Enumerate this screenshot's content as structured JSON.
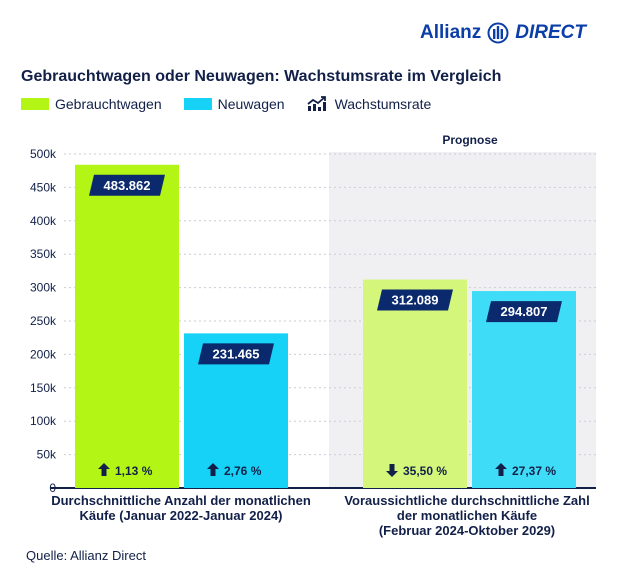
{
  "brand": {
    "name_part1": "Allianz",
    "name_part2": "DIRECT",
    "color": "#0b3ea8"
  },
  "title": "Gebrauchtwagen oder Neuwagen: Wachstumsrate im Vergleich",
  "legend": {
    "used": "Gebrauchtwagen",
    "new": "Neuwagen",
    "growth": "Wachstumsrate"
  },
  "source": "Quelle: Allianz Direct",
  "chart_data": {
    "type": "bar",
    "categories": [
      "Durchschnittliche Anzahl der monatlichen Käufe (Januar 2022-Januar 2024)",
      "Voraussichtliche durchschnittliche Zahl der monatlichen Käufe (Februar 2024-Oktober 2029)"
    ],
    "category_lines": [
      [
        "Durchschnittliche Anzahl der monatlichen",
        "Käufe (Januar 2022-Januar 2024)"
      ],
      [
        "Voraussichtliche durchschnittliche Zahl",
        "der monatlichen Käufe",
        "(Februar 2024-Oktober 2029)"
      ]
    ],
    "series": [
      {
        "name": "Gebrauchtwagen",
        "values": [
          483862,
          312089
        ],
        "labels": [
          "483.862",
          "312.089"
        ],
        "growth": [
          "1,13 %",
          "35,50 %"
        ],
        "growth_direction": [
          "up",
          "down"
        ],
        "colors": [
          "#b3f514",
          "#d4f77b"
        ]
      },
      {
        "name": "Neuwagen",
        "values": [
          231465,
          294807
        ],
        "labels": [
          "231.465",
          "294.807"
        ],
        "growth": [
          "2,76 %",
          "27,37 %"
        ],
        "growth_direction": [
          "up",
          "up"
        ],
        "colors": [
          "#16d2f6",
          "#3fdcf7"
        ]
      }
    ],
    "ylim": [
      0,
      500000
    ],
    "yticks": [
      0,
      50000,
      100000,
      150000,
      200000,
      250000,
      300000,
      350000,
      400000,
      450000,
      500000
    ],
    "ytick_labels": [
      "0",
      "50k",
      "100k",
      "150k",
      "200k",
      "250k",
      "300k",
      "350k",
      "400k",
      "450k",
      "500k"
    ],
    "forecast_label": "Prognose",
    "grid": true,
    "legend_position": "top-left"
  },
  "colors": {
    "used": "#b3f514",
    "new": "#16d2f6",
    "label_box": "#0b2a6e",
    "forecast_bg": "#f0f0f2",
    "text": "#122049"
  }
}
